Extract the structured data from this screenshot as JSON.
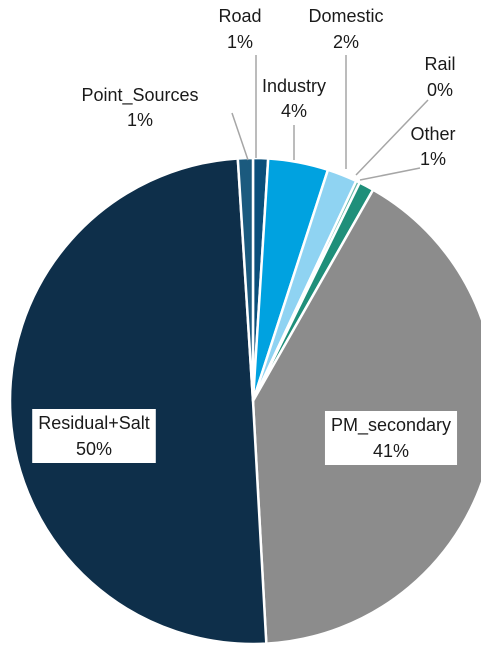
{
  "chart_data": {
    "type": "pie",
    "title": "",
    "start_angle_deg": 0,
    "direction": "clockwise",
    "slices": [
      {
        "name": "Road",
        "value": 1,
        "label": "1%",
        "color": "#0b4f7a"
      },
      {
        "name": "Industry",
        "value": 4,
        "label": "4%",
        "color": "#00a2e0"
      },
      {
        "name": "Domestic",
        "value": 2,
        "label": "2%",
        "color": "#8fd3f2"
      },
      {
        "name": "Rail",
        "value": 0,
        "label": "0%",
        "color": "#62b8a8"
      },
      {
        "name": "Other",
        "value": 1,
        "label": "1%",
        "color": "#1f8f7a"
      },
      {
        "name": "PM_secondary",
        "value": 41,
        "label": "41%",
        "color": "#8c8c8c"
      },
      {
        "name": "Residual+Salt",
        "value": 50,
        "label": "50%",
        "color": "#0e2f4a"
      },
      {
        "name": "Point_Sources",
        "value": 1,
        "label": "1%",
        "color": "#1b5a7e"
      }
    ]
  }
}
